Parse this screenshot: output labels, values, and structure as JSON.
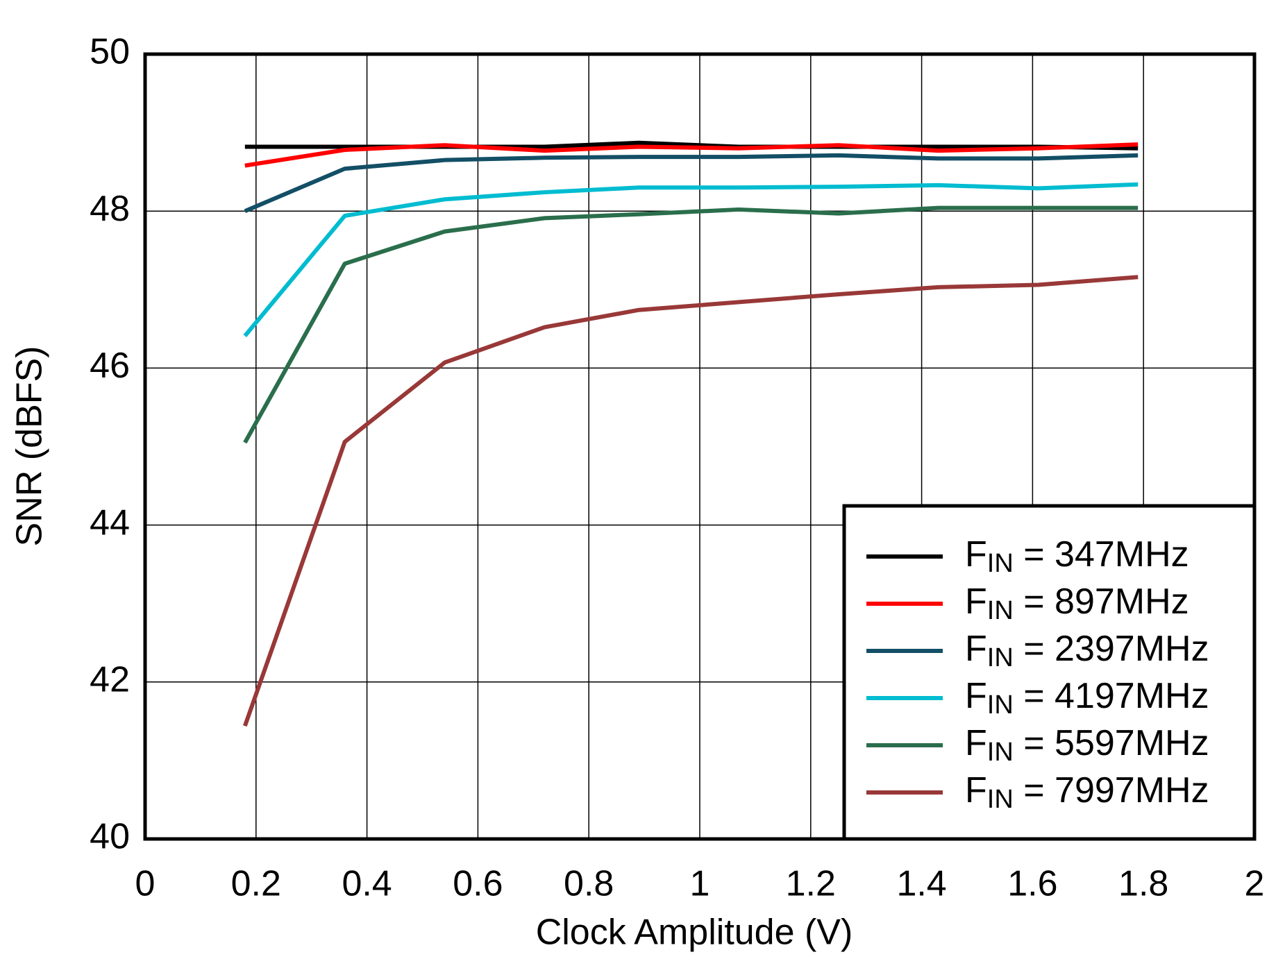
{
  "chart_data": {
    "type": "line",
    "x_label": "Clock Amplitude  (V)",
    "y_label": "SNR  (dBFS)",
    "x": [
      0.18,
      0.36,
      0.54,
      0.72,
      0.89,
      1.07,
      1.25,
      1.43,
      1.61,
      1.79
    ],
    "series": [
      {
        "name": "FIN = 347MHz",
        "color": "#000000",
        "values": [
          48.82,
          48.82,
          48.82,
          48.82,
          48.87,
          48.82,
          48.82,
          48.82,
          48.82,
          48.8
        ]
      },
      {
        "name": "FIN = 897MHz",
        "color": "#ff0000",
        "values": [
          48.58,
          48.78,
          48.84,
          48.77,
          48.82,
          48.8,
          48.84,
          48.77,
          48.8,
          48.85
        ]
      },
      {
        "name": "FIN = 2397MHz",
        "color": "#134f66",
        "values": [
          48.0,
          48.54,
          48.65,
          48.68,
          48.69,
          48.69,
          48.71,
          48.67,
          48.67,
          48.71
        ]
      },
      {
        "name": "FIN = 4197MHz",
        "color": "#00bcd0",
        "values": [
          46.41,
          47.94,
          48.15,
          48.24,
          48.3,
          48.3,
          48.31,
          48.33,
          48.29,
          48.34
        ]
      },
      {
        "name": "FIN = 5597MHz",
        "color": "#2a6e4c",
        "values": [
          45.05,
          47.33,
          47.74,
          47.91,
          47.96,
          48.02,
          47.97,
          48.04,
          48.04,
          48.04
        ]
      },
      {
        "name": "FIN = 7997MHz",
        "color": "#993838",
        "values": [
          41.44,
          45.06,
          46.07,
          46.52,
          46.74,
          46.84,
          46.94,
          47.03,
          47.06,
          47.16
        ]
      }
    ],
    "xlim": [
      0,
      2
    ],
    "xticks": [
      0,
      0.2,
      0.4,
      0.6,
      0.8,
      1,
      1.2,
      1.4,
      1.6,
      1.8,
      2
    ],
    "ylim": [
      40,
      50
    ],
    "yticks": [
      40,
      42,
      44,
      46,
      48,
      50
    ],
    "grid": true,
    "legend": "lower-right"
  }
}
